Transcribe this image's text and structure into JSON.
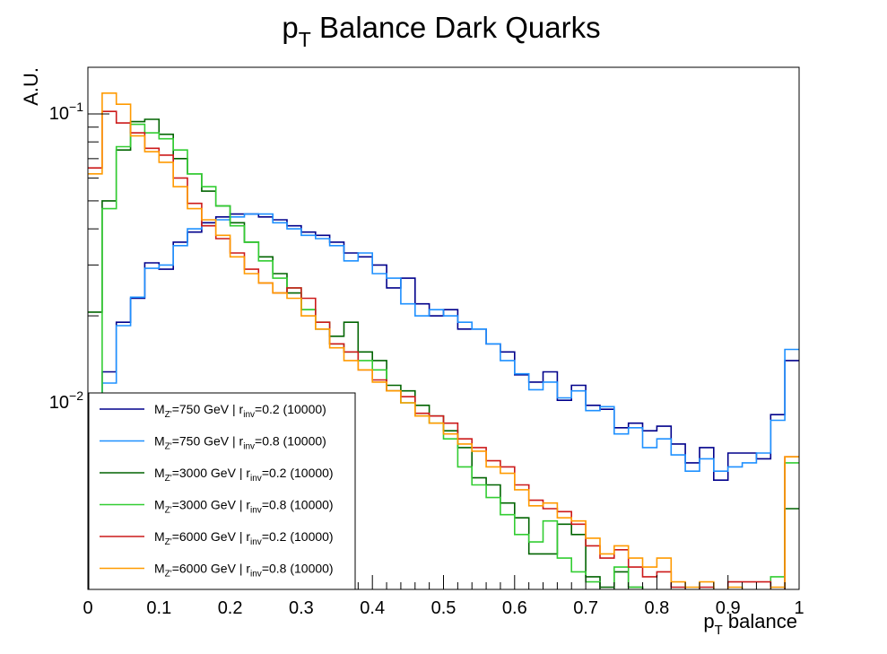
{
  "chart_data": {
    "type": "line",
    "style": "histogram-step",
    "title": "p",
    "title_sub": "T",
    "title_rest": " Balance Dark Quarks",
    "xlabel": "p",
    "xlabel_sub": "T",
    "xlabel_rest": " balance",
    "ylabel": "A.U.",
    "xlim": [
      0,
      1
    ],
    "ylim": [
      0.00226,
      0.145
    ],
    "yscale": "log",
    "xticks": [
      0,
      0.1,
      0.2,
      0.3,
      0.4,
      0.5,
      0.6,
      0.7,
      0.8,
      0.9,
      1
    ],
    "xtick_labels": [
      "0",
      "0.1",
      "0.2",
      "0.3",
      "0.4",
      "0.5",
      "0.6",
      "0.7",
      "0.8",
      "0.9",
      "1"
    ],
    "ytick_labels": [
      {
        "value": 0.1,
        "base": "10",
        "exp": "−1"
      },
      {
        "value": 0.01,
        "base": "10",
        "exp": "−2"
      }
    ],
    "bin_width": 0.02,
    "bin_starts": [
      0,
      0.02,
      0.04,
      0.06,
      0.08,
      0.1,
      0.12,
      0.14,
      0.16,
      0.18,
      0.2,
      0.22,
      0.24,
      0.26,
      0.28,
      0.3,
      0.32,
      0.34,
      0.36,
      0.38,
      0.4,
      0.42,
      0.44,
      0.46,
      0.48,
      0.5,
      0.52,
      0.54,
      0.56,
      0.58,
      0.6,
      0.62,
      0.64,
      0.66,
      0.68,
      0.7,
      0.72,
      0.74,
      0.76,
      0.78,
      0.8,
      0.82,
      0.84,
      0.86,
      0.88,
      0.9,
      0.92,
      0.94,
      0.96,
      0.98
    ],
    "grid": false,
    "legend_position": "bottom-left",
    "series": [
      {
        "name": "M",
        "name_sub": "Z'",
        "name_mid": "=750 GeV | r",
        "name_sub2": "inv",
        "name_rest": "=0.2 (10000)",
        "color": "#00008b",
        "values": [
          0.0094,
          0.0128,
          0.019,
          0.023,
          0.0305,
          0.029,
          0.036,
          0.039,
          0.042,
          0.044,
          0.045,
          0.045,
          0.044,
          0.043,
          0.041,
          0.039,
          0.038,
          0.036,
          0.033,
          0.032,
          0.03,
          0.025,
          0.027,
          0.022,
          0.02,
          0.021,
          0.018,
          0.018,
          0.016,
          0.015,
          0.0125,
          0.0118,
          0.0128,
          0.0102,
          0.0115,
          0.0098,
          0.0095,
          0.0082,
          0.0085,
          0.008,
          0.0083,
          0.0072,
          0.0062,
          0.007,
          0.0054,
          0.0067,
          0.0067,
          0.0064,
          0.0091,
          0.014
        ]
      },
      {
        "name": "M",
        "name_sub": "Z'",
        "name_mid": "=750 GeV | r",
        "name_sub2": "inv",
        "name_rest": "=0.8 (10000)",
        "color": "#1e90ff",
        "values": [
          0.0097,
          0.0117,
          0.0185,
          0.0232,
          0.0292,
          0.03,
          0.035,
          0.04,
          0.041,
          0.043,
          0.044,
          0.045,
          0.045,
          0.042,
          0.04,
          0.038,
          0.037,
          0.035,
          0.031,
          0.033,
          0.028,
          0.027,
          0.022,
          0.02,
          0.021,
          0.02,
          0.019,
          0.018,
          0.016,
          0.014,
          0.0126,
          0.0111,
          0.0118,
          0.0104,
          0.011,
          0.0094,
          0.0097,
          0.0078,
          0.0082,
          0.007,
          0.0075,
          0.0066,
          0.0058,
          0.0064,
          0.0058,
          0.006,
          0.0062,
          0.0067,
          0.0087,
          0.0153
        ]
      },
      {
        "name": "M",
        "name_sub": "Z'",
        "name_mid": "=3000 GeV | r",
        "name_sub2": "inv",
        "name_rest": "=0.2 (10000)",
        "color": "#006400",
        "values": [
          0.0206,
          0.05,
          0.075,
          0.094,
          0.0958,
          0.085,
          0.07,
          0.062,
          0.054,
          0.048,
          0.042,
          0.036,
          0.032,
          0.028,
          0.024,
          0.021,
          0.018,
          0.017,
          0.019,
          0.015,
          0.014,
          0.0115,
          0.011,
          0.0098,
          0.009,
          0.008,
          0.007,
          0.0055,
          0.0052,
          0.0045,
          0.004,
          0.003,
          0.003,
          0.0038,
          0.0035,
          0.0025,
          0.0023,
          0.0026,
          0.0023,
          0.0022,
          0.0022,
          0.0021,
          0.0021,
          0.002,
          0.002,
          0.002,
          0.002,
          0.0021,
          0.0021,
          0.0043
        ]
      },
      {
        "name": "M",
        "name_sub": "Z'",
        "name_mid": "=3000 GeV | r",
        "name_sub2": "inv",
        "name_rest": "=0.8 (10000)",
        "color": "#32cd32",
        "values": [
          0.0097,
          0.047,
          0.077,
          0.092,
          0.086,
          0.082,
          0.075,
          0.062,
          0.056,
          0.048,
          0.041,
          0.036,
          0.031,
          0.027,
          0.025,
          0.021,
          0.019,
          0.016,
          0.015,
          0.014,
          0.013,
          0.011,
          0.01,
          0.009,
          0.0085,
          0.0075,
          0.006,
          0.0052,
          0.0047,
          0.0041,
          0.0035,
          0.0033,
          0.0039,
          0.0029,
          0.0026,
          0.0024,
          0.0022,
          0.0027,
          0.0023,
          0.0022,
          0.0022,
          0.0021,
          0.0021,
          0.0021,
          0.0021,
          0.0021,
          0.0021,
          0.0022,
          0.0025,
          0.0062
        ]
      },
      {
        "name": "M",
        "name_sub": "Z'",
        "name_mid": "=6000 GeV | r",
        "name_sub2": "inv",
        "name_rest": "=0.2 (10000)",
        "color": "#cc1a1a",
        "values": [
          0.065,
          0.102,
          0.093,
          0.086,
          0.076,
          0.072,
          0.06,
          0.049,
          0.041,
          0.037,
          0.033,
          0.029,
          0.026,
          0.024,
          0.025,
          0.023,
          0.019,
          0.016,
          0.015,
          0.013,
          0.012,
          0.011,
          0.0105,
          0.0092,
          0.009,
          0.0085,
          0.0075,
          0.007,
          0.0063,
          0.006,
          0.0052,
          0.0046,
          0.0043,
          0.0042,
          0.0038,
          0.0032,
          0.0029,
          0.0031,
          0.0027,
          0.0025,
          0.0026,
          0.0023,
          0.0022,
          0.0023,
          0.0021,
          0.0024,
          0.0024,
          0.0024,
          0.0022,
          0.0065
        ]
      },
      {
        "name": "M",
        "name_sub": "Z'",
        "name_mid": "=6000 GeV | r",
        "name_sub2": "inv",
        "name_rest": "=0.8 (10000)",
        "color": "#ff9a00",
        "values": [
          0.062,
          0.118,
          0.108,
          0.084,
          0.074,
          0.068,
          0.056,
          0.047,
          0.043,
          0.038,
          0.032,
          0.028,
          0.026,
          0.024,
          0.023,
          0.02,
          0.018,
          0.0155,
          0.014,
          0.013,
          0.0118,
          0.011,
          0.01,
          0.009,
          0.0085,
          0.0078,
          0.0072,
          0.0068,
          0.006,
          0.0057,
          0.005,
          0.0044,
          0.0045,
          0.004,
          0.0039,
          0.0034,
          0.003,
          0.0032,
          0.0029,
          0.0027,
          0.0029,
          0.0024,
          0.0023,
          0.0024,
          0.0022,
          0.0023,
          0.0022,
          0.0022,
          0.0023,
          0.0065
        ]
      }
    ]
  }
}
